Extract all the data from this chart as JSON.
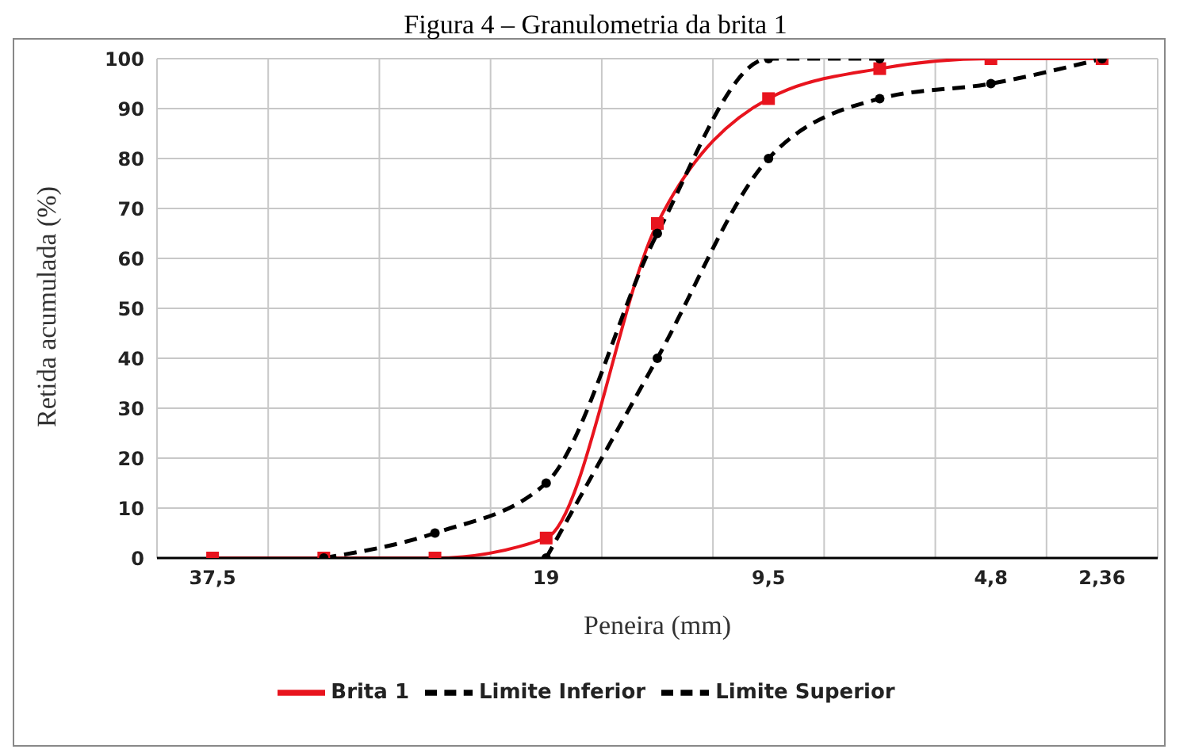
{
  "chart_data": {
    "type": "line",
    "title": "Figura 4 – Granulometria da brita 1",
    "xlabel": "Peneira (mm)",
    "ylabel": "Retida acumulada (%)",
    "categories": [
      "37,5",
      null,
      null,
      "19",
      null,
      "9,5",
      null,
      "4,8",
      "2,36"
    ],
    "series": [
      {
        "name": "Brita 1",
        "color": "#e8141e",
        "values": [
          0,
          0,
          0,
          4,
          67,
          92,
          98,
          100,
          100
        ],
        "marker": "square",
        "line_style": "solid"
      },
      {
        "name": "Limite Inferior",
        "color": "#000000",
        "values": [
          null,
          null,
          null,
          0,
          40,
          80,
          92,
          95,
          100
        ],
        "marker": "circle",
        "line_style": "dashed"
      },
      {
        "name": "Limite Superior",
        "color": "#000000",
        "values": [
          null,
          0,
          5,
          15,
          65,
          100,
          100,
          null,
          null
        ],
        "marker": "circle",
        "line_style": "dashed"
      }
    ],
    "ylim": [
      0,
      100
    ],
    "yticks": [
      0,
      10,
      20,
      30,
      40,
      50,
      60,
      70,
      80,
      90,
      100
    ],
    "grid": true,
    "legend": "bottom"
  }
}
